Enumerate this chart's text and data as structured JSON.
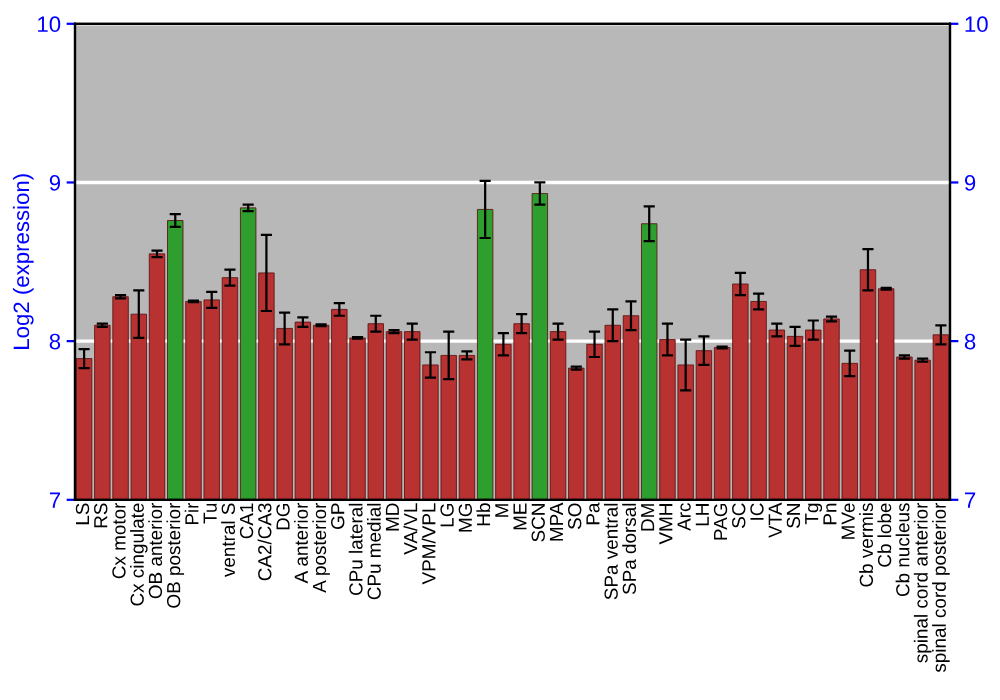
{
  "chart_data": {
    "type": "bar",
    "ylabel": "Log2 (expression)",
    "categories": [
      "LS",
      "RS",
      "Cx motor",
      "Cx cingulate",
      "OB anterior",
      "OB posterior",
      "Pir",
      "Tu",
      "ventral S",
      "CA1",
      "CA2/CA3",
      "DG",
      "A anterior",
      "A posterior",
      "GP",
      "CPu lateral",
      "CPu medial",
      "MD",
      "VA/VL",
      "VPM/VPL",
      "LG",
      "MG",
      "Hb",
      "M",
      "ME",
      "SCN",
      "MPA",
      "SO",
      "Pa",
      "SPa ventral",
      "SPa dorsal",
      "DM",
      "VMH",
      "Arc",
      "LH",
      "PAG",
      "SC",
      "IC",
      "VTA",
      "SN",
      "Tg",
      "Pn",
      "MVe",
      "Cb vermis",
      "Cb lobe",
      "Cb nucleus",
      "spinal cord anterior",
      "spinal cord posterior"
    ],
    "values": [
      7.89,
      8.1,
      8.28,
      8.17,
      8.55,
      8.76,
      8.25,
      8.26,
      8.4,
      8.84,
      8.43,
      8.08,
      8.12,
      8.1,
      8.2,
      8.02,
      8.11,
      8.06,
      8.06,
      7.85,
      7.91,
      7.91,
      8.83,
      7.98,
      8.11,
      8.93,
      8.06,
      7.83,
      7.98,
      8.1,
      8.16,
      8.74,
      8.01,
      7.85,
      7.94,
      7.96,
      8.36,
      8.25,
      8.07,
      8.03,
      8.07,
      8.14,
      7.86,
      8.45,
      8.33,
      7.9,
      7.88,
      8.04
    ],
    "errors": [
      0.06,
      0.01,
      0.01,
      0.15,
      0.02,
      0.04,
      0.005,
      0.05,
      0.05,
      0.02,
      0.24,
      0.1,
      0.03,
      0.005,
      0.04,
      0.005,
      0.05,
      0.01,
      0.05,
      0.08,
      0.15,
      0.025,
      0.18,
      0.07,
      0.06,
      0.07,
      0.05,
      0.01,
      0.08,
      0.1,
      0.09,
      0.11,
      0.1,
      0.16,
      0.09,
      0.005,
      0.07,
      0.05,
      0.04,
      0.06,
      0.06,
      0.015,
      0.08,
      0.13,
      0.005,
      0.01,
      0.01,
      0.06
    ],
    "colors": [
      "#b83232",
      "#b83232",
      "#b83232",
      "#b83232",
      "#b83232",
      "#2e9e2e",
      "#b83232",
      "#b83232",
      "#b83232",
      "#2e9e2e",
      "#b83232",
      "#b83232",
      "#b83232",
      "#b83232",
      "#b83232",
      "#b83232",
      "#b83232",
      "#b83232",
      "#b83232",
      "#b83232",
      "#b83232",
      "#b83232",
      "#2e9e2e",
      "#b83232",
      "#b83232",
      "#2e9e2e",
      "#b83232",
      "#b83232",
      "#b83232",
      "#b83232",
      "#b83232",
      "#2e9e2e",
      "#b83232",
      "#b83232",
      "#b83232",
      "#b83232",
      "#b83232",
      "#b83232",
      "#b83232",
      "#b83232",
      "#b83232",
      "#b83232",
      "#b83232",
      "#b83232",
      "#b83232",
      "#b83232",
      "#b83232",
      "#b83232"
    ],
    "ylim": [
      7,
      10
    ],
    "yticks": [
      7,
      8,
      9,
      10
    ],
    "y2lim": [
      7,
      10
    ],
    "y2ticks": [
      7,
      8,
      9,
      10
    ],
    "grid": "y"
  }
}
